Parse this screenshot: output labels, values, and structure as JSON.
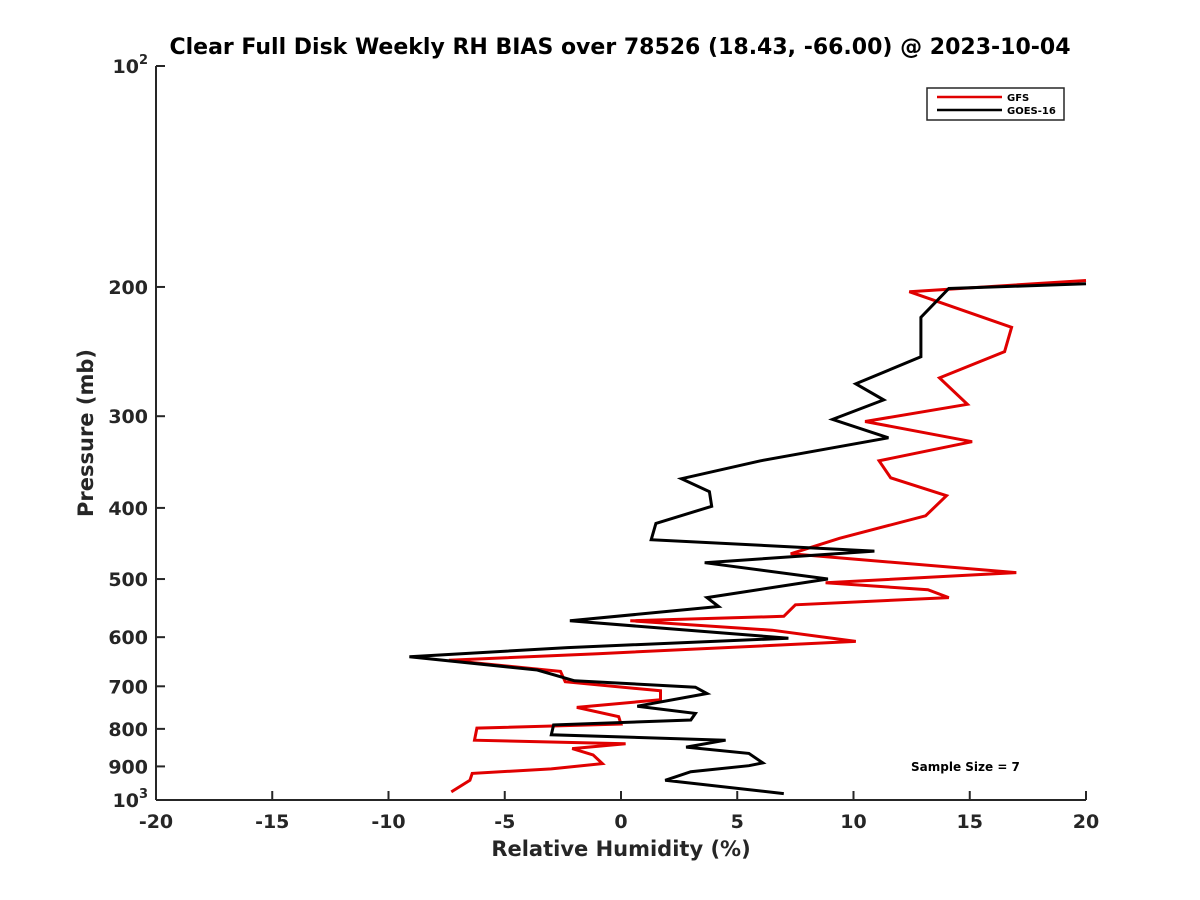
{
  "chart_data": {
    "type": "line",
    "title": "Clear Full Disk Weekly RH BIAS over 78526 (18.43, -66.00) @ 2023-10-04",
    "xlabel": "Relative Humidity (%)",
    "ylabel": "Pressure (mb)",
    "xlim": [
      -20,
      20
    ],
    "ylim": [
      100,
      1000
    ],
    "y_scale": "log",
    "y_reversed": true,
    "x_ticks": [
      "-20",
      "-15",
      "-10",
      "-5",
      "0",
      "5",
      "10",
      "15",
      "20"
    ],
    "y_ticks": [
      {
        "value": 100,
        "base": "10",
        "exp": "2"
      },
      {
        "value": 200,
        "base": "200",
        "exp": ""
      },
      {
        "value": 300,
        "base": "300",
        "exp": ""
      },
      {
        "value": 400,
        "base": "400",
        "exp": ""
      },
      {
        "value": 500,
        "base": "500",
        "exp": ""
      },
      {
        "value": 600,
        "base": "600",
        "exp": ""
      },
      {
        "value": 700,
        "base": "700",
        "exp": ""
      },
      {
        "value": 800,
        "base": "800",
        "exp": ""
      },
      {
        "value": 900,
        "base": "900",
        "exp": ""
      },
      {
        "value": 1000,
        "base": "10",
        "exp": "3"
      }
    ],
    "grid": false,
    "legend_position": "top-right",
    "annotation": "Sample Size = 7",
    "series": [
      {
        "name": "GFS",
        "color": "#e00000",
        "points": [
          [
            20.0,
            196
          ],
          [
            12.4,
            203
          ],
          [
            16.8,
            227
          ],
          [
            16.5,
            245
          ],
          [
            13.7,
            266
          ],
          [
            14.9,
            289
          ],
          [
            10.5,
            305
          ],
          [
            15.1,
            325
          ],
          [
            11.1,
            345
          ],
          [
            11.6,
            364
          ],
          [
            14.0,
            385
          ],
          [
            13.1,
            410
          ],
          [
            9.4,
            440
          ],
          [
            7.3,
            462
          ],
          [
            17.0,
            490
          ],
          [
            8.8,
            506
          ],
          [
            13.2,
            517
          ],
          [
            14.1,
            530
          ],
          [
            7.5,
            542
          ],
          [
            7.0,
            562
          ],
          [
            0.4,
            570
          ],
          [
            6.5,
            587
          ],
          [
            10.1,
            608
          ],
          [
            -1.0,
            632
          ],
          [
            -7.4,
            645
          ],
          [
            -2.6,
            668
          ],
          [
            -2.4,
            690
          ],
          [
            1.7,
            710
          ],
          [
            1.7,
            730
          ],
          [
            -1.9,
            748
          ],
          [
            -0.1,
            770
          ],
          [
            0.0,
            788
          ],
          [
            -6.2,
            798
          ],
          [
            -6.3,
            829
          ],
          [
            0.2,
            838
          ],
          [
            -2.1,
            851
          ],
          [
            -1.2,
            868
          ],
          [
            -0.8,
            892
          ],
          [
            -3.0,
            907
          ],
          [
            -6.4,
            920
          ],
          [
            -6.5,
            940
          ],
          [
            -7.3,
            975
          ]
        ]
      },
      {
        "name": "GOES-16",
        "color": "#000000",
        "points": [
          [
            20.0,
            198
          ],
          [
            14.1,
            201
          ],
          [
            12.9,
            220
          ],
          [
            12.9,
            249
          ],
          [
            10.1,
            271
          ],
          [
            11.3,
            285
          ],
          [
            9.1,
            303
          ],
          [
            11.5,
            321
          ],
          [
            6.0,
            345
          ],
          [
            2.6,
            365
          ],
          [
            3.8,
            380
          ],
          [
            3.9,
            398
          ],
          [
            1.5,
            420
          ],
          [
            1.3,
            442
          ],
          [
            10.9,
            458
          ],
          [
            3.6,
            475
          ],
          [
            8.9,
            500
          ],
          [
            3.7,
            530
          ],
          [
            4.2,
            545
          ],
          [
            -2.2,
            570
          ],
          [
            7.2,
            602
          ],
          [
            -2.3,
            620
          ],
          [
            -9.1,
            638
          ],
          [
            -3.6,
            665
          ],
          [
            -2.0,
            688
          ],
          [
            3.2,
            702
          ],
          [
            3.7,
            716
          ],
          [
            0.7,
            745
          ],
          [
            3.2,
            762
          ],
          [
            3.0,
            778
          ],
          [
            -2.9,
            790
          ],
          [
            -3.0,
            815
          ],
          [
            4.5,
            829
          ],
          [
            2.8,
            847
          ],
          [
            5.5,
            864
          ],
          [
            6.1,
            890
          ],
          [
            5.5,
            898
          ],
          [
            3.0,
            915
          ],
          [
            1.9,
            940
          ],
          [
            7.0,
            980
          ]
        ]
      }
    ]
  }
}
